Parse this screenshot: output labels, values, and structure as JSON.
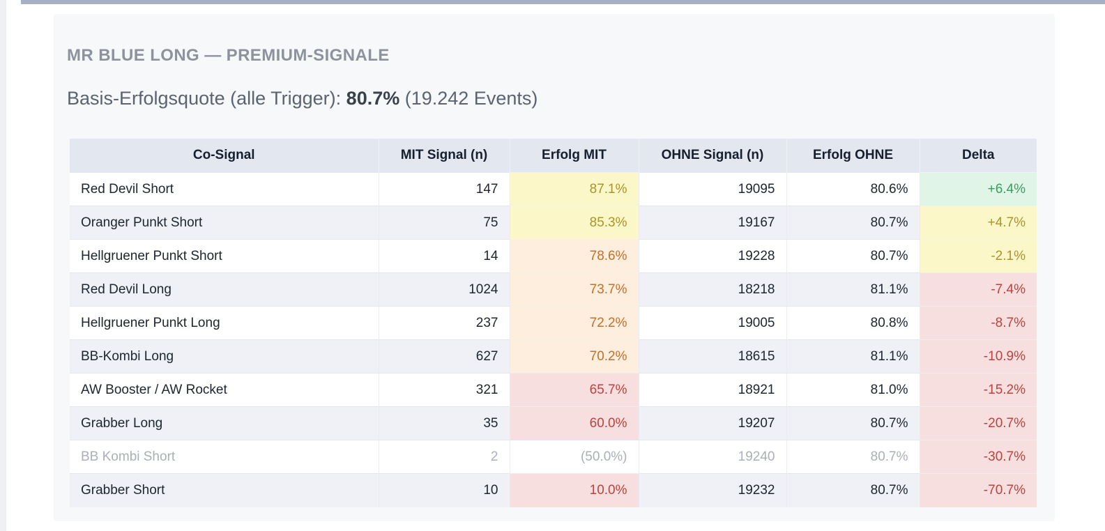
{
  "page": {
    "title": "MR BLUE LONG — PREMIUM-SIGNALE",
    "subtitle_prefix": "Basis-Erfolgsquote (alle Trigger): ",
    "subtitle_value": "80.7%",
    "subtitle_suffix": " (19.242 Events)"
  },
  "table": {
    "columns": [
      "Co-Signal",
      "MIT Signal (n)",
      "Erfolg MIT",
      "OHNE Signal (n)",
      "Erfolg OHNE",
      "Delta"
    ],
    "rows": [
      {
        "co_signal": "Red Devil Short",
        "mit_n": "147",
        "erfolg_mit": "87.1%",
        "mit_tone": "yellow",
        "ohne_n": "19095",
        "erfolg_ohne": "80.6%",
        "delta": "+6.4%",
        "delta_tone": "green",
        "muted": false
      },
      {
        "co_signal": "Oranger Punkt Short",
        "mit_n": "75",
        "erfolg_mit": "85.3%",
        "mit_tone": "yellow",
        "ohne_n": "19167",
        "erfolg_ohne": "80.7%",
        "delta": "+4.7%",
        "delta_tone": "yellow",
        "muted": false
      },
      {
        "co_signal": "Hellgruener Punkt Short",
        "mit_n": "14",
        "erfolg_mit": "78.6%",
        "mit_tone": "peach",
        "ohne_n": "19228",
        "erfolg_ohne": "80.7%",
        "delta": "-2.1%",
        "delta_tone": "yellow",
        "muted": false
      },
      {
        "co_signal": "Red Devil Long",
        "mit_n": "1024",
        "erfolg_mit": "73.7%",
        "mit_tone": "peach",
        "ohne_n": "18218",
        "erfolg_ohne": "81.1%",
        "delta": "-7.4%",
        "delta_tone": "pink",
        "muted": false
      },
      {
        "co_signal": "Hellgruener Punkt Long",
        "mit_n": "237",
        "erfolg_mit": "72.2%",
        "mit_tone": "peach",
        "ohne_n": "19005",
        "erfolg_ohne": "80.8%",
        "delta": "-8.7%",
        "delta_tone": "pink",
        "muted": false
      },
      {
        "co_signal": "BB-Kombi Long",
        "mit_n": "627",
        "erfolg_mit": "70.2%",
        "mit_tone": "peach",
        "ohne_n": "18615",
        "erfolg_ohne": "81.1%",
        "delta": "-10.9%",
        "delta_tone": "pink",
        "muted": false
      },
      {
        "co_signal": "AW Booster / AW Rocket",
        "mit_n": "321",
        "erfolg_mit": "65.7%",
        "mit_tone": "pink",
        "ohne_n": "18921",
        "erfolg_ohne": "81.0%",
        "delta": "-15.2%",
        "delta_tone": "pink",
        "muted": false
      },
      {
        "co_signal": "Grabber Long",
        "mit_n": "35",
        "erfolg_mit": "60.0%",
        "mit_tone": "pink",
        "ohne_n": "19207",
        "erfolg_ohne": "80.7%",
        "delta": "-20.7%",
        "delta_tone": "pink",
        "muted": false
      },
      {
        "co_signal": "BB Kombi Short",
        "mit_n": "2",
        "erfolg_mit": "(50.0%)",
        "mit_tone": "none",
        "ohne_n": "19240",
        "erfolg_ohne": "80.7%",
        "delta": "-30.7%",
        "delta_tone": "pink",
        "muted": true
      },
      {
        "co_signal": "Grabber Short",
        "mit_n": "10",
        "erfolg_mit": "10.0%",
        "mit_tone": "pink",
        "ohne_n": "19232",
        "erfolg_ohne": "80.7%",
        "delta": "-70.7%",
        "delta_tone": "pink",
        "muted": false
      }
    ]
  },
  "colors": {
    "window_top_bar": "#a6b0c6",
    "card_background": "#f7f8fa",
    "header_row_background": "#e3e7f0",
    "alt_row_background": "#eff1f7",
    "tone_yellow_bg": "#fbf7c9",
    "tone_yellow_text": "#ab9428",
    "tone_peach_bg": "#fdeedd",
    "tone_peach_text": "#c2702e",
    "tone_pink_bg": "#f8dfdf",
    "tone_pink_text": "#c0413c",
    "tone_green_bg": "#e1f5e7",
    "tone_green_text": "#399c60",
    "muted_text": "#abafb8",
    "title_text": "#8d929d"
  }
}
